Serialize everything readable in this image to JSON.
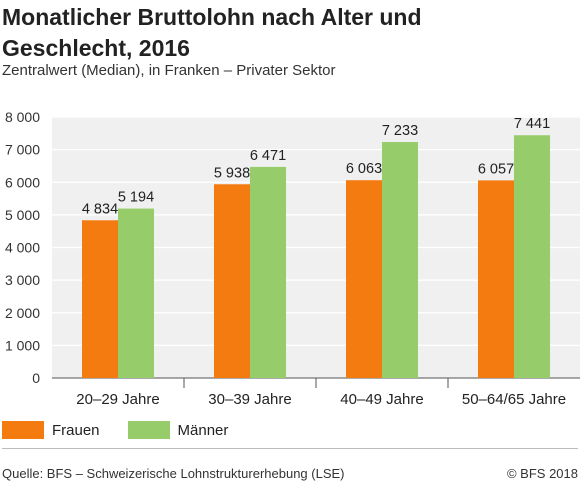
{
  "header": {
    "title": "Monatlicher Bruttolohn nach Alter und Geschlecht, 2016",
    "subtitle": "Zentralwert (Median), in Franken – Privater Sektor"
  },
  "chart_data": {
    "type": "bar",
    "categories": [
      "20–29 Jahre",
      "30–39 Jahre",
      "40–49 Jahre",
      "50–64/65 Jahre"
    ],
    "series": [
      {
        "name": "Frauen",
        "values": [
          4834,
          5938,
          6063,
          6057
        ],
        "labels": [
          "4 834",
          "5 938",
          "6 063",
          "6 057"
        ],
        "color": "#f47b0f"
      },
      {
        "name": "Männer",
        "values": [
          5194,
          6471,
          7233,
          7441
        ],
        "labels": [
          "5 194",
          "6 471",
          "7 233",
          "7 441"
        ],
        "color": "#97cc6a"
      }
    ],
    "yticks": [
      0,
      1000,
      2000,
      3000,
      4000,
      5000,
      6000,
      7000,
      8000
    ],
    "ytick_labels": [
      "0",
      "1 000",
      "2 000",
      "3 000",
      "4 000",
      "5 000",
      "6 000",
      "7 000",
      "8 000"
    ],
    "ylim": [
      0,
      8000
    ],
    "grid": true,
    "legend": "bottom-left",
    "title": "Monatlicher Bruttolohn nach Alter und Geschlecht, 2016",
    "subtitle": "Zentralwert (Median), in Franken – Privater Sektor",
    "xlabel": "",
    "ylabel": ""
  },
  "footer": {
    "source": "Quelle: BFS – Schweizerische Lohnstrukturerhebung (LSE)",
    "copyright": "© BFS 2018"
  }
}
